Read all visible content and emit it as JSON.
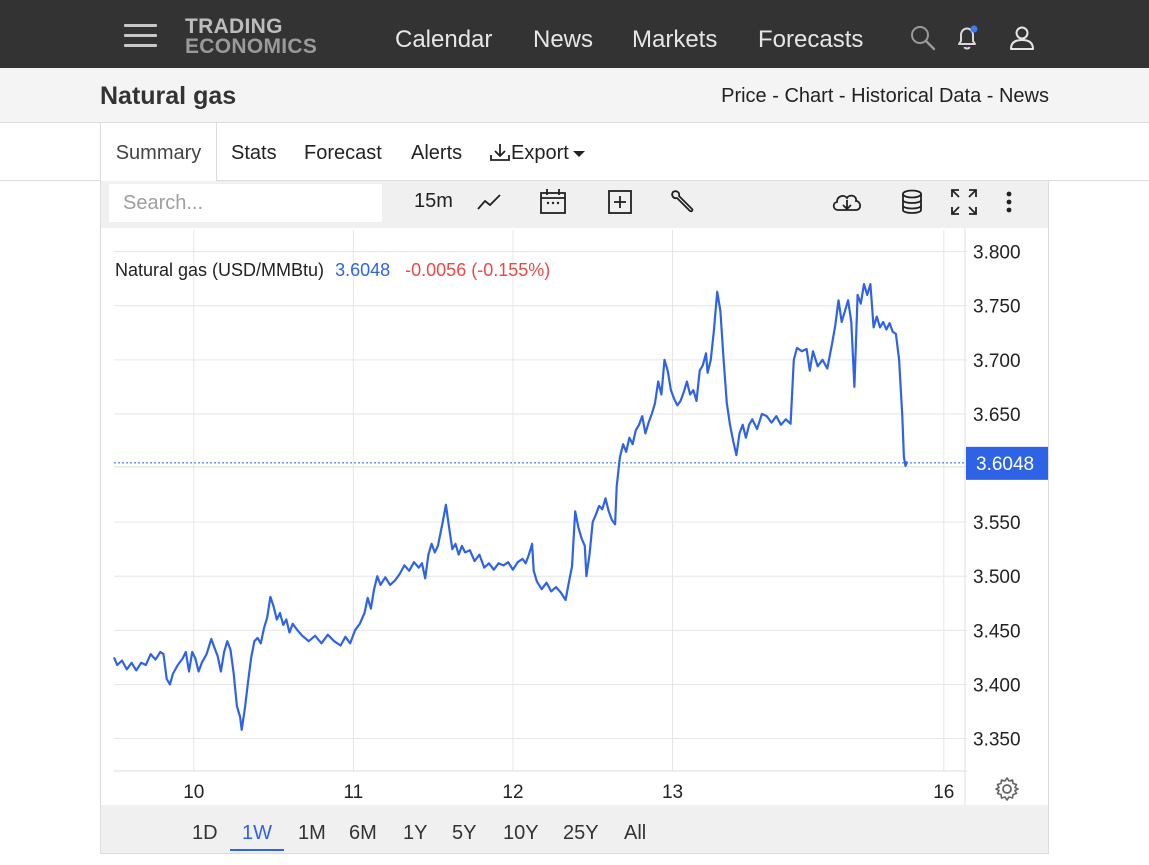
{
  "nav": {
    "logo_line1": "TRADING",
    "logo_line2": "ECONOMICS",
    "links": [
      "Calendar",
      "News",
      "Markets",
      "Forecasts"
    ]
  },
  "header": {
    "title": "Natural gas",
    "breadcrumbs": [
      "Price",
      "Chart",
      "Historical Data",
      "News"
    ],
    "separator": " - "
  },
  "tabs": {
    "summary": "Summary",
    "stats": "Stats",
    "forecast": "Forecast",
    "alerts": "Alerts",
    "export": "Export"
  },
  "toolbar": {
    "search_placeholder": "Search...",
    "interval": "15m"
  },
  "legend": {
    "name": "Natural gas (USD/MMBtu)",
    "price": "3.6048",
    "change": "-0.0056 (-0.155%)"
  },
  "ranges": [
    "1D",
    "1W",
    "1M",
    "6M",
    "1Y",
    "5Y",
    "10Y",
    "25Y",
    "All"
  ],
  "active_range": "1W",
  "colors": {
    "line": "#2f63e6",
    "change_negative": "#e84a4a",
    "price_tag": "#2f63e6",
    "grid": "#e6e6e6"
  },
  "chart_data": {
    "type": "line",
    "title": "Natural gas (USD/MMBtu)",
    "ylim": [
      3.32,
      3.82
    ],
    "yticks": [
      "3.350",
      "3.400",
      "3.450",
      "3.500",
      "3.550",
      "3.650",
      "3.700",
      "3.750",
      "3.800"
    ],
    "xticks": [
      {
        "label": "10",
        "x": 0.5
      },
      {
        "label": "11",
        "x": 1.5
      },
      {
        "label": "12",
        "x": 2.5
      },
      {
        "label": "13",
        "x": 3.5
      },
      {
        "label": "16",
        "x": 5.2
      }
    ],
    "last_price": 3.6048,
    "series": [
      {
        "points": [
          [
            0.0,
            3.425
          ],
          [
            0.02,
            3.418
          ],
          [
            0.05,
            3.422
          ],
          [
            0.08,
            3.414
          ],
          [
            0.11,
            3.42
          ],
          [
            0.14,
            3.413
          ],
          [
            0.17,
            3.42
          ],
          [
            0.2,
            3.418
          ],
          [
            0.23,
            3.428
          ],
          [
            0.26,
            3.423
          ],
          [
            0.29,
            3.43
          ],
          [
            0.31,
            3.428
          ],
          [
            0.33,
            3.405
          ],
          [
            0.35,
            3.4
          ],
          [
            0.37,
            3.41
          ],
          [
            0.4,
            3.418
          ],
          [
            0.43,
            3.424
          ],
          [
            0.45,
            3.43
          ],
          [
            0.47,
            3.412
          ],
          [
            0.49,
            3.43
          ],
          [
            0.51,
            3.424
          ],
          [
            0.53,
            3.412
          ],
          [
            0.55,
            3.42
          ],
          [
            0.58,
            3.428
          ],
          [
            0.61,
            3.442
          ],
          [
            0.63,
            3.434
          ],
          [
            0.65,
            3.426
          ],
          [
            0.67,
            3.412
          ],
          [
            0.69,
            3.43
          ],
          [
            0.71,
            3.44
          ],
          [
            0.73,
            3.432
          ],
          [
            0.75,
            3.41
          ],
          [
            0.77,
            3.38
          ],
          [
            0.79,
            3.37
          ],
          [
            0.8,
            3.358
          ],
          [
            0.82,
            3.378
          ],
          [
            0.84,
            3.402
          ],
          [
            0.86,
            3.425
          ],
          [
            0.88,
            3.44
          ],
          [
            0.9,
            3.443
          ],
          [
            0.92,
            3.438
          ],
          [
            0.94,
            3.452
          ],
          [
            0.96,
            3.462
          ],
          [
            0.98,
            3.481
          ],
          [
            1.0,
            3.472
          ],
          [
            1.02,
            3.46
          ],
          [
            1.04,
            3.466
          ],
          [
            1.06,
            3.455
          ],
          [
            1.08,
            3.46
          ],
          [
            1.1,
            3.448
          ],
          [
            1.12,
            3.456
          ],
          [
            1.15,
            3.45
          ],
          [
            1.18,
            3.445
          ],
          [
            1.22,
            3.44
          ],
          [
            1.26,
            3.445
          ],
          [
            1.3,
            3.438
          ],
          [
            1.34,
            3.446
          ],
          [
            1.38,
            3.44
          ],
          [
            1.42,
            3.436
          ],
          [
            1.45,
            3.444
          ],
          [
            1.48,
            3.438
          ],
          [
            1.51,
            3.45
          ],
          [
            1.54,
            3.456
          ],
          [
            1.57,
            3.466
          ],
          [
            1.59,
            3.48
          ],
          [
            1.61,
            3.47
          ],
          [
            1.63,
            3.488
          ],
          [
            1.65,
            3.5
          ],
          [
            1.67,
            3.492
          ],
          [
            1.7,
            3.499
          ],
          [
            1.73,
            3.492
          ],
          [
            1.76,
            3.496
          ],
          [
            1.79,
            3.502
          ],
          [
            1.82,
            3.51
          ],
          [
            1.85,
            3.505
          ],
          [
            1.88,
            3.513
          ],
          [
            1.91,
            3.508
          ],
          [
            1.93,
            3.512
          ],
          [
            1.95,
            3.498
          ],
          [
            1.97,
            3.52
          ],
          [
            1.99,
            3.53
          ],
          [
            2.01,
            3.522
          ],
          [
            2.03,
            3.528
          ],
          [
            2.06,
            3.55
          ],
          [
            2.08,
            3.566
          ],
          [
            2.1,
            3.545
          ],
          [
            2.12,
            3.525
          ],
          [
            2.14,
            3.53
          ],
          [
            2.16,
            3.52
          ],
          [
            2.18,
            3.528
          ],
          [
            2.2,
            3.522
          ],
          [
            2.23,
            3.524
          ],
          [
            2.26,
            3.514
          ],
          [
            2.29,
            3.52
          ],
          [
            2.32,
            3.508
          ],
          [
            2.35,
            3.512
          ],
          [
            2.38,
            3.506
          ],
          [
            2.41,
            3.512
          ],
          [
            2.44,
            3.51
          ],
          [
            2.47,
            3.513
          ],
          [
            2.5,
            3.506
          ],
          [
            2.53,
            3.513
          ],
          [
            2.56,
            3.516
          ],
          [
            2.58,
            3.512
          ],
          [
            2.6,
            3.52
          ],
          [
            2.62,
            3.53
          ],
          [
            2.63,
            3.505
          ],
          [
            2.65,
            3.495
          ],
          [
            2.68,
            3.488
          ],
          [
            2.71,
            3.494
          ],
          [
            2.74,
            3.486
          ],
          [
            2.77,
            3.49
          ],
          [
            2.8,
            3.485
          ],
          [
            2.83,
            3.478
          ],
          [
            2.85,
            3.494
          ],
          [
            2.87,
            3.509
          ],
          [
            2.89,
            3.56
          ],
          [
            2.91,
            3.545
          ],
          [
            2.93,
            3.535
          ],
          [
            2.95,
            3.528
          ],
          [
            2.96,
            3.5
          ],
          [
            2.98,
            3.52
          ],
          [
            3.0,
            3.55
          ],
          [
            3.02,
            3.557
          ],
          [
            3.04,
            3.565
          ],
          [
            3.06,
            3.562
          ],
          [
            3.08,
            3.572
          ],
          [
            3.1,
            3.56
          ],
          [
            3.12,
            3.552
          ],
          [
            3.14,
            3.548
          ],
          [
            3.15,
            3.583
          ],
          [
            3.17,
            3.61
          ],
          [
            3.19,
            3.622
          ],
          [
            3.21,
            3.615
          ],
          [
            3.23,
            3.628
          ],
          [
            3.25,
            3.622
          ],
          [
            3.27,
            3.635
          ],
          [
            3.29,
            3.64
          ],
          [
            3.31,
            3.648
          ],
          [
            3.33,
            3.632
          ],
          [
            3.35,
            3.642
          ],
          [
            3.37,
            3.65
          ],
          [
            3.39,
            3.66
          ],
          [
            3.41,
            3.68
          ],
          [
            3.43,
            3.668
          ],
          [
            3.45,
            3.7
          ],
          [
            3.47,
            3.69
          ],
          [
            3.49,
            3.672
          ],
          [
            3.51,
            3.664
          ],
          [
            3.53,
            3.658
          ],
          [
            3.55,
            3.662
          ],
          [
            3.57,
            3.67
          ],
          [
            3.59,
            3.68
          ],
          [
            3.61,
            3.668
          ],
          [
            3.63,
            3.672
          ],
          [
            3.65,
            3.662
          ],
          [
            3.67,
            3.69
          ],
          [
            3.69,
            3.695
          ],
          [
            3.71,
            3.706
          ],
          [
            3.72,
            3.688
          ],
          [
            3.74,
            3.7
          ],
          [
            3.76,
            3.728
          ],
          [
            3.78,
            3.763
          ],
          [
            3.8,
            3.745
          ],
          [
            3.82,
            3.7
          ],
          [
            3.84,
            3.66
          ],
          [
            3.86,
            3.64
          ],
          [
            3.88,
            3.625
          ],
          [
            3.9,
            3.612
          ],
          [
            3.92,
            3.632
          ],
          [
            3.94,
            3.64
          ],
          [
            3.96,
            3.628
          ],
          [
            3.98,
            3.64
          ],
          [
            4.0,
            3.645
          ],
          [
            4.03,
            3.636
          ],
          [
            4.06,
            3.65
          ],
          [
            4.09,
            3.648
          ],
          [
            4.12,
            3.642
          ],
          [
            4.15,
            3.648
          ],
          [
            4.18,
            3.64
          ],
          [
            4.21,
            3.645
          ],
          [
            4.24,
            3.641
          ],
          [
            4.26,
            3.7
          ],
          [
            4.28,
            3.711
          ],
          [
            4.31,
            3.708
          ],
          [
            4.34,
            3.71
          ],
          [
            4.36,
            3.69
          ],
          [
            4.38,
            3.708
          ],
          [
            4.41,
            3.694
          ],
          [
            4.44,
            3.7
          ],
          [
            4.47,
            3.692
          ],
          [
            4.5,
            3.715
          ],
          [
            4.52,
            3.732
          ],
          [
            4.54,
            3.755
          ],
          [
            4.56,
            3.735
          ],
          [
            4.58,
            3.745
          ],
          [
            4.6,
            3.755
          ],
          [
            4.62,
            3.735
          ],
          [
            4.64,
            3.675
          ],
          [
            4.66,
            3.76
          ],
          [
            4.68,
            3.752
          ],
          [
            4.7,
            3.77
          ],
          [
            4.72,
            3.76
          ],
          [
            4.74,
            3.77
          ],
          [
            4.76,
            3.73
          ],
          [
            4.78,
            3.74
          ],
          [
            4.8,
            3.73
          ],
          [
            4.82,
            3.735
          ],
          [
            4.84,
            3.728
          ],
          [
            4.86,
            3.734
          ],
          [
            4.88,
            3.726
          ],
          [
            4.9,
            3.724
          ],
          [
            4.92,
            3.7
          ],
          [
            4.94,
            3.648
          ],
          [
            4.95,
            3.61
          ],
          [
            4.96,
            3.602
          ],
          [
            4.97,
            3.606
          ]
        ]
      }
    ]
  }
}
